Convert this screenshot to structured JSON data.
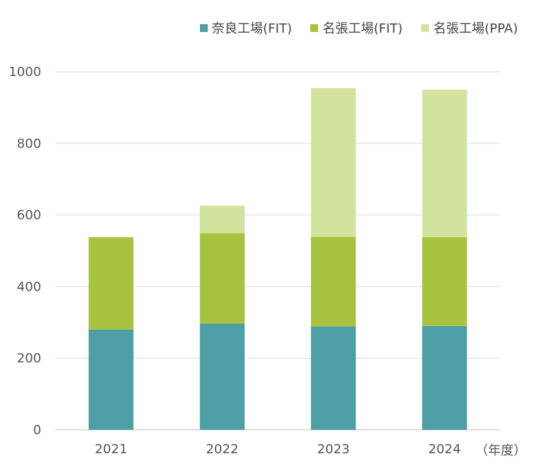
{
  "chart_data": {
    "type": "bar",
    "stacked": true,
    "categories": [
      "2021",
      "2022",
      "2023",
      "2024"
    ],
    "series": [
      {
        "name": "奈良工場(FIT)",
        "color": "#4e9ea5",
        "values": [
          280,
          297,
          289,
          290
        ]
      },
      {
        "name": "名張工場(FIT)",
        "color": "#a8c240",
        "values": [
          258,
          252,
          250,
          248
        ]
      },
      {
        "name": "名張工場(PPA)",
        "color": "#d3e29c",
        "values": [
          0,
          77,
          415,
          412
        ]
      }
    ],
    "yticks": [
      0,
      200,
      400,
      600,
      800,
      1000
    ],
    "ylim": [
      0,
      1000
    ],
    "grid": true,
    "legend_position": "top-right",
    "x_unit_label": "（年度）"
  }
}
